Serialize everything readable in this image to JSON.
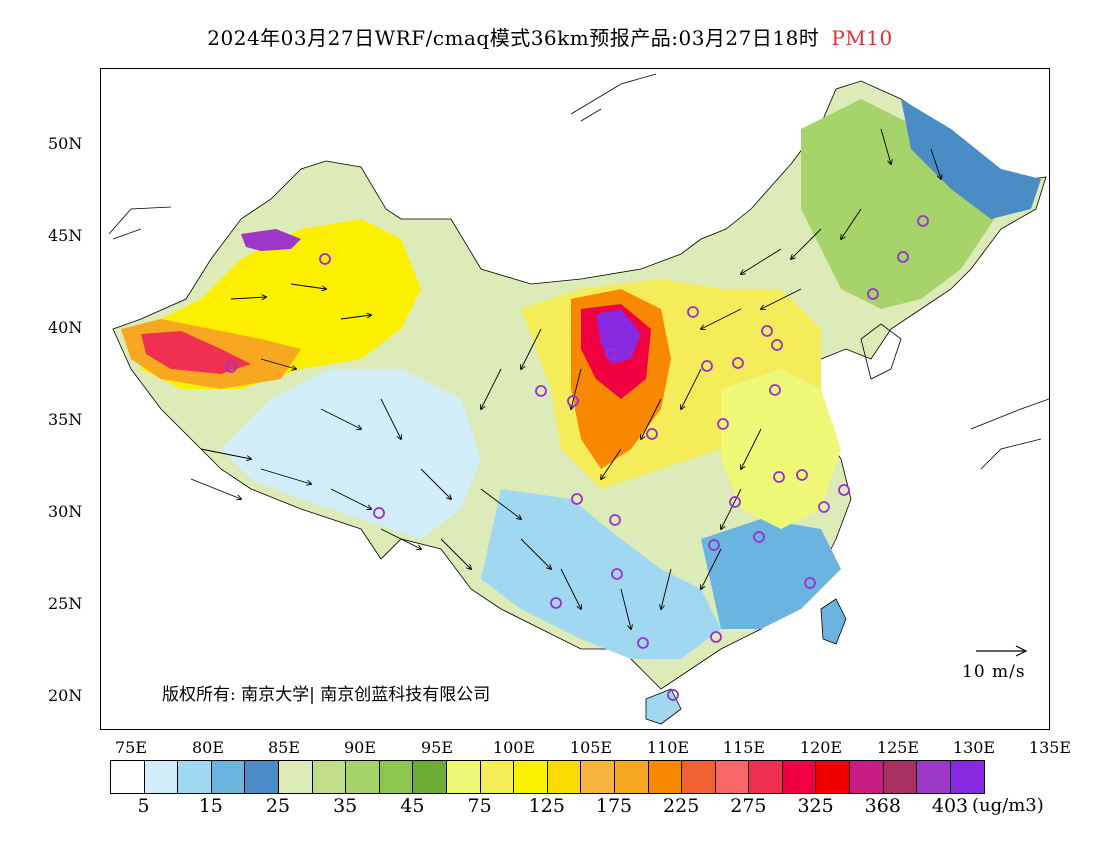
{
  "header": {
    "title": "2024年03月27日WRF/cmaq模式36km预报产品:03月27日18时",
    "variable": "PM10"
  },
  "axes": {
    "lat_labels": [
      "50N",
      "45N",
      "40N",
      "35N",
      "30N",
      "25N",
      "20N"
    ],
    "lon_labels": [
      "75E",
      "80E",
      "85E",
      "90E",
      "95E",
      "100E",
      "105E",
      "110E",
      "115E",
      "120E",
      "125E",
      "130E",
      "135E"
    ]
  },
  "copyright": "版权所有: 南京大学| 南京创蓝科技有限公司",
  "reference_vector": {
    "label": "10 m/s"
  },
  "colorbar": {
    "colors": [
      "#ffffff",
      "#d2eefa",
      "#a0d8f2",
      "#6cb4e0",
      "#4a8cc4",
      "#dcebb8",
      "#c0de8a",
      "#a6d46a",
      "#8cc850",
      "#6cac34",
      "#f0f878",
      "#f4ec58",
      "#fcf000",
      "#f8dc00",
      "#f8b440",
      "#f8a820",
      "#f88800",
      "#f06030",
      "#f86868",
      "#f03050",
      "#f00040",
      "#f00000",
      "#c81c84",
      "#a83060",
      "#9c38c8",
      "#8828e0"
    ],
    "labels": [
      "5",
      "15",
      "25",
      "35",
      "45",
      "75",
      "125",
      "175",
      "225",
      "275",
      "325",
      "368",
      "403"
    ],
    "unit": "(ug/m3)"
  },
  "colors": {
    "title_highlight": "#e53030",
    "station_marker": "#9b30d0"
  }
}
